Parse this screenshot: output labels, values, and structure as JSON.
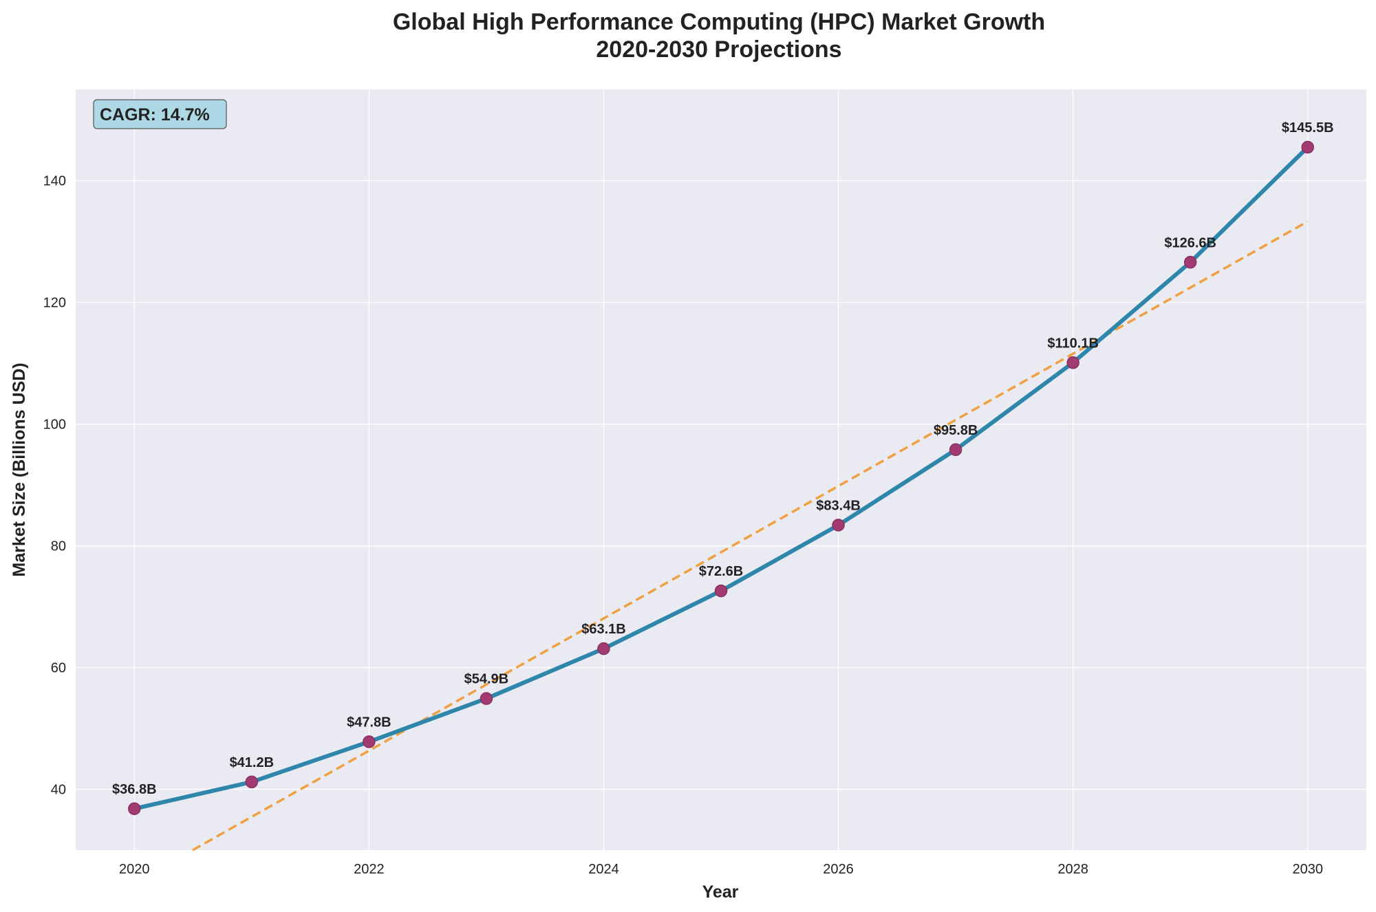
{
  "chart_data": {
    "type": "line",
    "title": [
      "Global High Performance Computing (HPC) Market Growth",
      "2020-2030 Projections"
    ],
    "xlabel": "Year",
    "ylabel": "Market Size (Billions USD)",
    "x": [
      2020,
      2021,
      2022,
      2023,
      2024,
      2025,
      2026,
      2027,
      2028,
      2029,
      2030
    ],
    "series": [
      {
        "values": [
          36.8,
          41.2,
          47.8,
          54.9,
          63.1,
          72.6,
          83.4,
          95.8,
          110.1,
          126.6,
          145.5
        ],
        "labels": [
          "$36.8B",
          "$41.2B",
          "$47.8B",
          "$54.9B",
          "$63.1B",
          "$72.6B",
          "$83.4B",
          "$95.8B",
          "$110.1B",
          "$126.6B",
          "$145.5B"
        ],
        "color": "#2e86ab",
        "marker_color": "#a23b72"
      }
    ],
    "trend_line": {
      "style": "dashed",
      "color": "#f0a040",
      "x": [
        2020,
        2030
      ],
      "values": [
        24.6,
        133.3
      ]
    },
    "xlim": [
      2019.5,
      2030.5
    ],
    "ylim": [
      30,
      155
    ],
    "xticks": [
      2020,
      2022,
      2024,
      2026,
      2028,
      2030
    ],
    "yticks": [
      40,
      60,
      80,
      100,
      120,
      140
    ],
    "grid": true,
    "annotation": {
      "text": "CAGR: 14.7%",
      "position": "top-left"
    },
    "colors": {
      "background": "#eaeaf2",
      "grid": "#ffffff",
      "annotation_bg": "#add8e6"
    }
  }
}
